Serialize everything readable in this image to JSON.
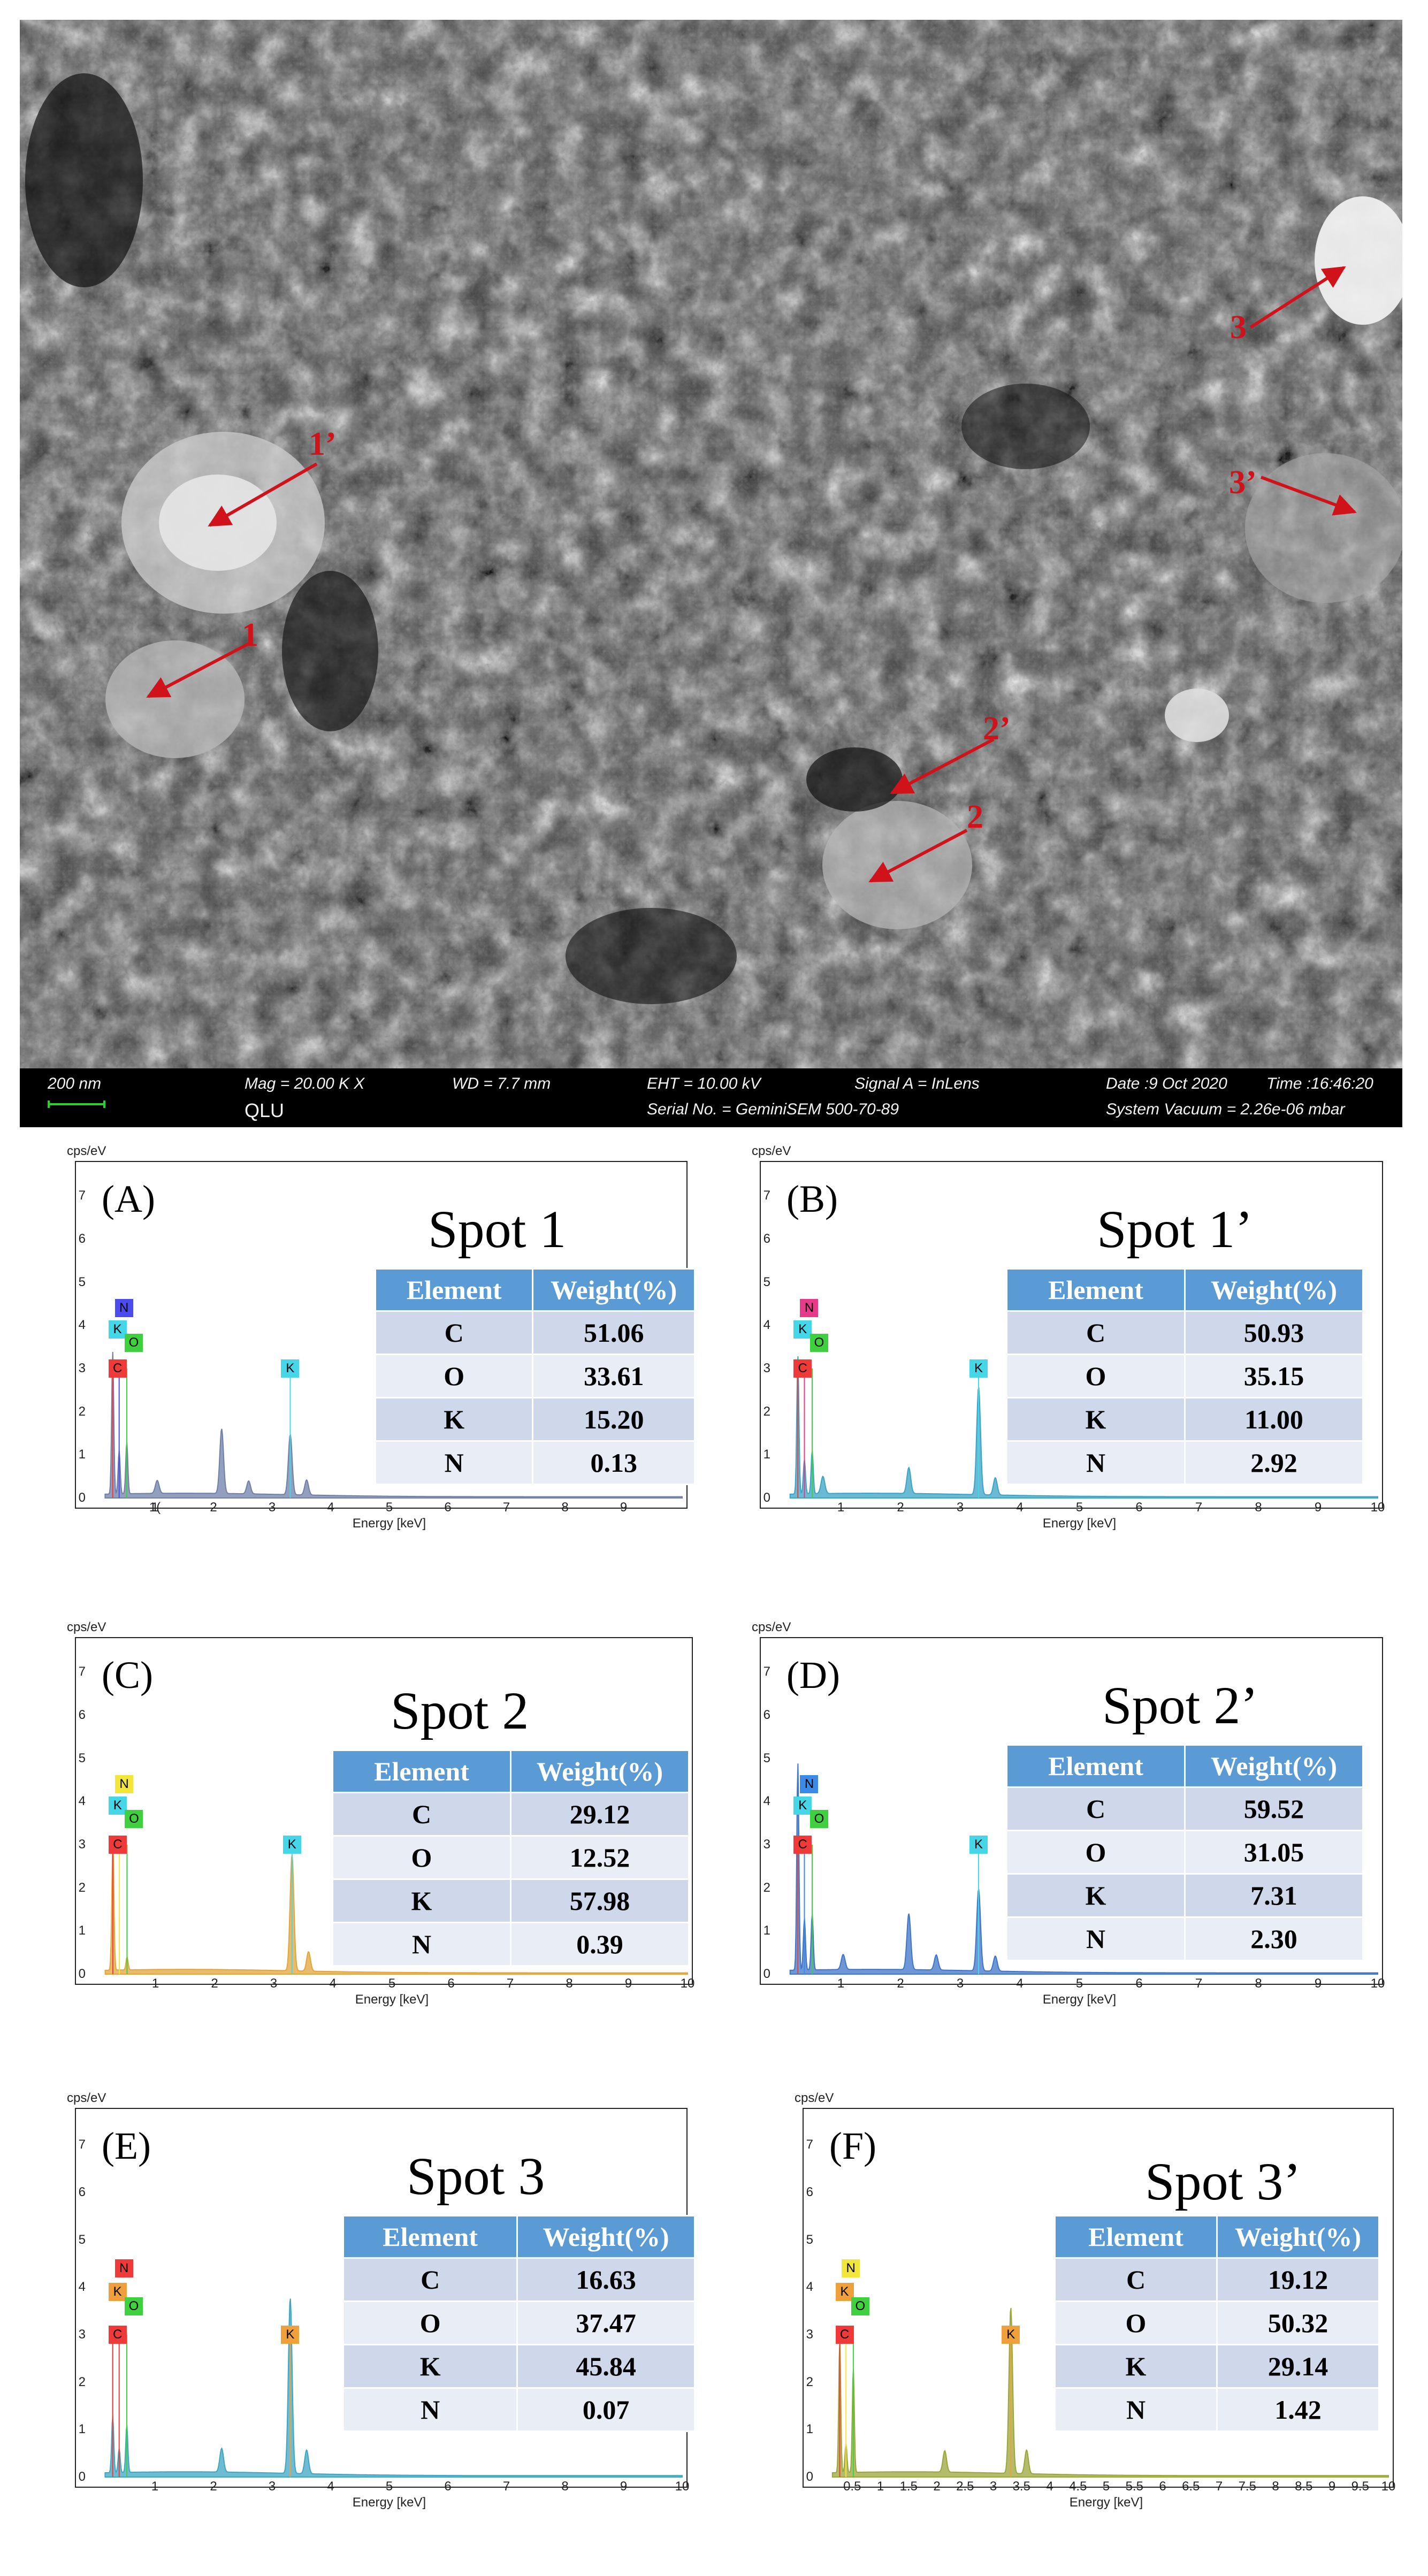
{
  "sem": {
    "spot_labels": [
      "1",
      "1’",
      "2",
      "2’",
      "3",
      "3’"
    ],
    "arrow_color": "#d0121b",
    "info": {
      "scale": "200 nm",
      "mag": "Mag =  20.00 K X",
      "wd": "WD =  7.7 mm",
      "eht": "EHT = 10.00 kV",
      "signal": "Signal A = InLens",
      "date": "Date :9 Oct 2020",
      "time": "Time :16:46:20",
      "qlu": "QLU",
      "serial": "Serial No. = GeminiSEM 500-70-89",
      "vacuum": "System Vacuum = 2.26e-06 mbar"
    }
  },
  "axis": {
    "y_unit": "cps/eV",
    "x_label": "Energy [keV]",
    "y_ticks": [
      "0",
      "1",
      "2",
      "3",
      "4",
      "5",
      "6",
      "7"
    ],
    "x_ticks": [
      "1",
      "2",
      "3",
      "4",
      "5",
      "6",
      "7",
      "8",
      "9",
      "10"
    ],
    "x_ticks_a": [
      "1",
      "2",
      "3",
      "4",
      "5",
      "6",
      "7",
      "8",
      "9",
      "1("
    ],
    "x_ticks_f": [
      "0.5",
      "1",
      "1.5",
      "2",
      "2.5",
      "3",
      "3.5",
      "4",
      "4.5",
      "5",
      "5.5",
      "6",
      "6.5",
      "7",
      "7.5",
      "8",
      "8.5",
      "9",
      "9.5",
      "10"
    ],
    "table_headers": [
      "Element",
      "Weight(%)"
    ]
  },
  "chart_data": [
    {
      "type": "area",
      "panel": "(A)",
      "title": "Spot 1",
      "xlabel": "Energy [keV]",
      "ylabel": "cps/eV",
      "xlim": [
        0,
        10
      ],
      "ylim": [
        0,
        7.5
      ],
      "color": "#6f7fa8",
      "peak_labels": [
        {
          "el": "N",
          "x": 0.39,
          "color": "#4b4bf0"
        },
        {
          "el": "K",
          "x": 0.28,
          "color": "#45d6e8"
        },
        {
          "el": "O",
          "x": 0.52,
          "color": "#3fd03f"
        },
        {
          "el": "C",
          "x": 0.28,
          "color": "#f03a3a"
        },
        {
          "el": "K",
          "x": 3.31,
          "color": "#45d6e8"
        }
      ],
      "peaks": [
        {
          "x": 0.28,
          "y": 3.3
        },
        {
          "x": 0.39,
          "y": 1.0
        },
        {
          "x": 0.52,
          "y": 1.2
        },
        {
          "x": 1.04,
          "y": 0.3
        },
        {
          "x": 2.14,
          "y": 1.5
        },
        {
          "x": 2.6,
          "y": 0.3
        },
        {
          "x": 3.31,
          "y": 1.4
        },
        {
          "x": 3.59,
          "y": 0.35
        }
      ],
      "table": [
        [
          "C",
          "51.06"
        ],
        [
          "O",
          "33.61"
        ],
        [
          "K",
          "15.20"
        ],
        [
          "N",
          "0.13"
        ]
      ]
    },
    {
      "type": "area",
      "panel": "(B)",
      "title": "Spot 1’",
      "xlabel": "Energy [keV]",
      "ylabel": "cps/eV",
      "xlim": [
        0,
        10
      ],
      "ylim": [
        0,
        7.5
      ],
      "color": "#3aa3c6",
      "peak_labels": [
        {
          "el": "N",
          "x": 0.39,
          "color": "#e83a8a"
        },
        {
          "el": "K",
          "x": 0.28,
          "color": "#45d6e8"
        },
        {
          "el": "O",
          "x": 0.52,
          "color": "#3fd03f"
        },
        {
          "el": "C",
          "x": 0.28,
          "color": "#f03a3a"
        },
        {
          "el": "K",
          "x": 3.31,
          "color": "#45d6e8"
        }
      ],
      "peaks": [
        {
          "x": 0.28,
          "y": 3.2
        },
        {
          "x": 0.39,
          "y": 0.8
        },
        {
          "x": 0.52,
          "y": 1.0
        },
        {
          "x": 0.7,
          "y": 0.4
        },
        {
          "x": 2.14,
          "y": 0.6
        },
        {
          "x": 3.31,
          "y": 2.5
        },
        {
          "x": 3.59,
          "y": 0.4
        }
      ],
      "table": [
        [
          "C",
          "50.93"
        ],
        [
          "O",
          "35.15"
        ],
        [
          "K",
          "11.00"
        ],
        [
          "N",
          "2.92"
        ]
      ]
    },
    {
      "type": "area",
      "panel": "(C)",
      "title": "Spot 2",
      "xlabel": "Energy [keV]",
      "ylabel": "cps/eV",
      "xlim": [
        0,
        10
      ],
      "ylim": [
        0,
        7.5
      ],
      "color": "#e3a43a",
      "peak_labels": [
        {
          "el": "N",
          "x": 0.39,
          "color": "#f2e63a"
        },
        {
          "el": "K",
          "x": 0.28,
          "color": "#45d6e8"
        },
        {
          "el": "O",
          "x": 0.52,
          "color": "#3fd03f"
        },
        {
          "el": "C",
          "x": 0.28,
          "color": "#f03a3a"
        },
        {
          "el": "K",
          "x": 3.31,
          "color": "#45d6e8"
        }
      ],
      "peaks": [
        {
          "x": 0.28,
          "y": 3.0
        },
        {
          "x": 0.52,
          "y": 0.3
        },
        {
          "x": 3.31,
          "y": 2.7
        },
        {
          "x": 3.59,
          "y": 0.45
        }
      ],
      "table": [
        [
          "C",
          "29.12"
        ],
        [
          "O",
          "12.52"
        ],
        [
          "K",
          "57.98"
        ],
        [
          "N",
          "0.39"
        ]
      ]
    },
    {
      "type": "area",
      "panel": "(D)",
      "title": "Spot 2’",
      "xlabel": "Energy [keV]",
      "ylabel": "cps/eV",
      "xlim": [
        0,
        10
      ],
      "ylim": [
        0,
        7.5
      ],
      "color": "#3f74c8",
      "peak_labels": [
        {
          "el": "N",
          "x": 0.39,
          "color": "#3a8be8"
        },
        {
          "el": "K",
          "x": 0.28,
          "color": "#45d6e8"
        },
        {
          "el": "O",
          "x": 0.52,
          "color": "#3fd03f"
        },
        {
          "el": "C",
          "x": 0.28,
          "color": "#f03a3a"
        },
        {
          "el": "K",
          "x": 3.31,
          "color": "#45d6e8"
        }
      ],
      "peaks": [
        {
          "x": 0.28,
          "y": 4.8
        },
        {
          "x": 0.39,
          "y": 1.2
        },
        {
          "x": 0.52,
          "y": 1.3
        },
        {
          "x": 1.04,
          "y": 0.35
        },
        {
          "x": 2.14,
          "y": 1.3
        },
        {
          "x": 2.6,
          "y": 0.35
        },
        {
          "x": 3.31,
          "y": 1.9
        },
        {
          "x": 3.59,
          "y": 0.35
        }
      ],
      "table": [
        [
          "C",
          "59.52"
        ],
        [
          "O",
          "31.05"
        ],
        [
          "K",
          "7.31"
        ],
        [
          "N",
          "2.30"
        ]
      ]
    },
    {
      "type": "area",
      "panel": "(E)",
      "title": "Spot 3",
      "xlabel": "Energy [keV]",
      "ylabel": "cps/eV",
      "xlim": [
        0,
        10
      ],
      "ylim": [
        0,
        7.5
      ],
      "color": "#3ea5c2",
      "peak_labels": [
        {
          "el": "N",
          "x": 0.39,
          "color": "#f03a3a"
        },
        {
          "el": "K",
          "x": 0.28,
          "color": "#f0a03a"
        },
        {
          "el": "O",
          "x": 0.52,
          "color": "#3fd03f"
        },
        {
          "el": "C",
          "x": 0.28,
          "color": "#f03a3a"
        },
        {
          "el": "K",
          "x": 3.31,
          "color": "#f0a03a"
        }
      ],
      "peaks": [
        {
          "x": 0.28,
          "y": 1.2
        },
        {
          "x": 0.39,
          "y": 0.5
        },
        {
          "x": 0.52,
          "y": 1.0
        },
        {
          "x": 2.14,
          "y": 0.5
        },
        {
          "x": 3.31,
          "y": 3.7
        },
        {
          "x": 3.59,
          "y": 0.5
        }
      ],
      "table": [
        [
          "C",
          "16.63"
        ],
        [
          "O",
          "37.47"
        ],
        [
          "K",
          "45.84"
        ],
        [
          "N",
          "0.07"
        ]
      ]
    },
    {
      "type": "area",
      "panel": "(F)",
      "title": "Spot 3’",
      "xlabel": "Energy [keV]",
      "ylabel": "cps/eV",
      "xlim": [
        0,
        10
      ],
      "ylim": [
        0,
        7.5
      ],
      "color": "#9aa63a",
      "peak_labels": [
        {
          "el": "N",
          "x": 0.39,
          "color": "#f2e63a"
        },
        {
          "el": "K",
          "x": 0.28,
          "color": "#f0a03a"
        },
        {
          "el": "O",
          "x": 0.52,
          "color": "#3fd03f"
        },
        {
          "el": "C",
          "x": 0.28,
          "color": "#f03a3a"
        },
        {
          "el": "K",
          "x": 3.31,
          "color": "#f0a03a"
        }
      ],
      "peaks": [
        {
          "x": 0.28,
          "y": 2.8
        },
        {
          "x": 0.39,
          "y": 0.6
        },
        {
          "x": 0.52,
          "y": 2.2
        },
        {
          "x": 2.14,
          "y": 0.45
        },
        {
          "x": 3.31,
          "y": 3.5
        },
        {
          "x": 3.59,
          "y": 0.5
        }
      ],
      "table": [
        [
          "C",
          "19.12"
        ],
        [
          "O",
          "50.32"
        ],
        [
          "K",
          "29.14"
        ],
        [
          "N",
          "1.42"
        ]
      ]
    }
  ]
}
